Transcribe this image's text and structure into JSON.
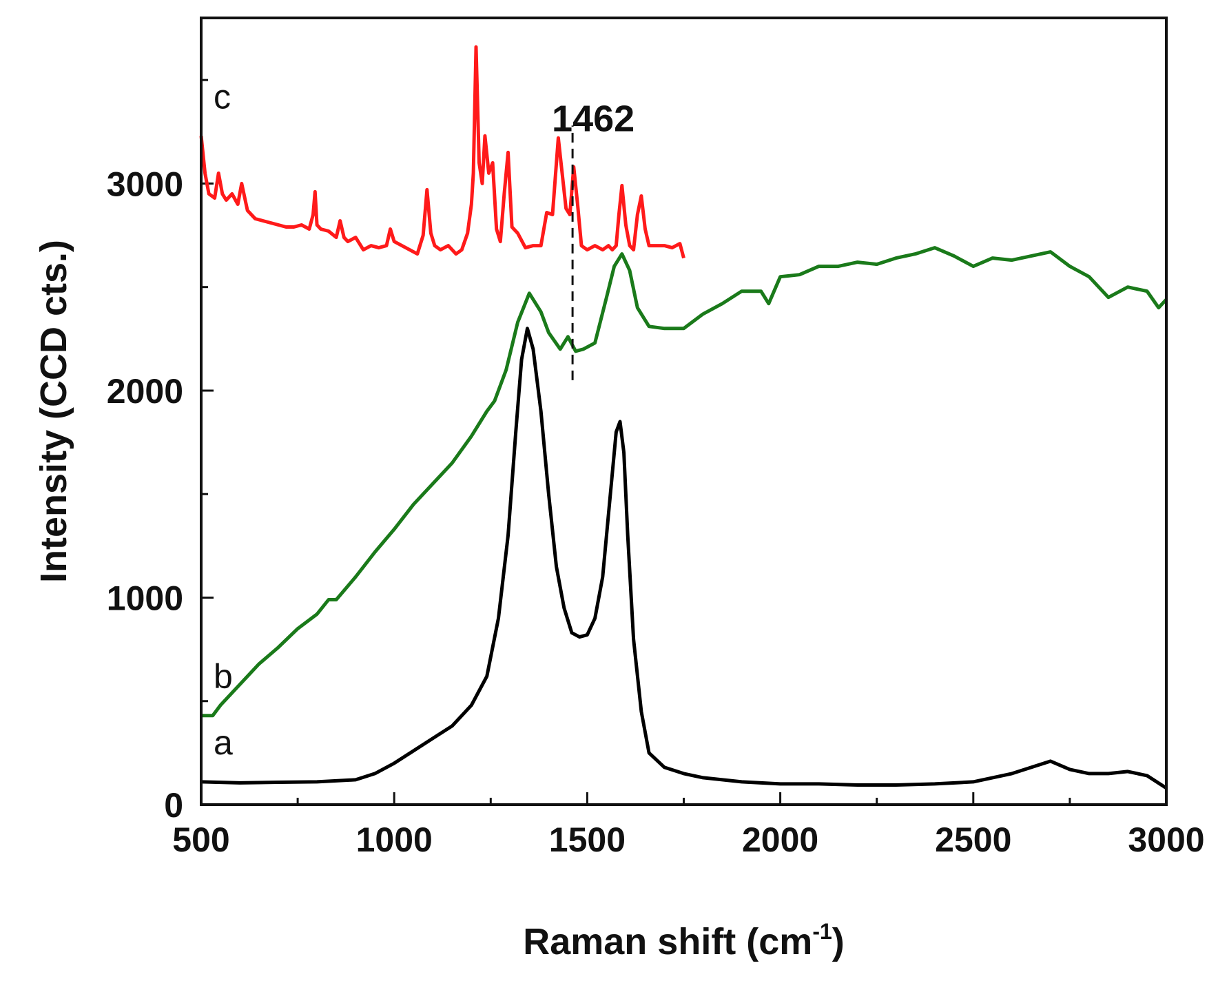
{
  "chart_data": {
    "type": "line",
    "title": "",
    "xlabel": "Raman shift (cm",
    "xlabel_sup": "-1",
    "xlabel_close": ")",
    "ylabel": "Intensity (CCD cts.)",
    "xlim": [
      500,
      3000
    ],
    "ylim": [
      0,
      3800
    ],
    "xticks": [
      500,
      1000,
      1500,
      2000,
      2500,
      3000
    ],
    "yticks": [
      0,
      1000,
      2000,
      3000
    ],
    "minor_xtick_step": 250,
    "minor_ytick_step": 500,
    "annotation": {
      "text": "1462",
      "x": 1462,
      "y_from": 2050,
      "y_to": 3280
    },
    "series": [
      {
        "name": "a",
        "color": "#000000",
        "x": [
          500,
          600,
          700,
          800,
          900,
          950,
          1000,
          1050,
          1100,
          1150,
          1200,
          1240,
          1270,
          1295,
          1315,
          1330,
          1345,
          1360,
          1380,
          1400,
          1420,
          1440,
          1460,
          1480,
          1500,
          1520,
          1540,
          1560,
          1575,
          1585,
          1595,
          1605,
          1620,
          1640,
          1660,
          1700,
          1750,
          1800,
          1900,
          2000,
          2100,
          2200,
          2300,
          2400,
          2500,
          2600,
          2650,
          2700,
          2750,
          2800,
          2850,
          2900,
          2950,
          3000
        ],
        "y": [
          110,
          105,
          108,
          110,
          120,
          150,
          200,
          260,
          320,
          380,
          480,
          620,
          900,
          1300,
          1800,
          2150,
          2300,
          2200,
          1900,
          1500,
          1150,
          950,
          830,
          810,
          820,
          900,
          1100,
          1500,
          1800,
          1850,
          1700,
          1300,
          800,
          450,
          250,
          180,
          150,
          130,
          110,
          100,
          100,
          95,
          95,
          100,
          110,
          150,
          180,
          210,
          170,
          150,
          150,
          160,
          140,
          80
        ]
      },
      {
        "name": "b",
        "color": "#1a7a1a",
        "x": [
          500,
          530,
          550,
          600,
          650,
          700,
          750,
          800,
          830,
          850,
          900,
          950,
          1000,
          1050,
          1100,
          1150,
          1200,
          1240,
          1260,
          1290,
          1320,
          1350,
          1380,
          1400,
          1430,
          1450,
          1470,
          1490,
          1520,
          1550,
          1570,
          1590,
          1610,
          1630,
          1660,
          1700,
          1750,
          1800,
          1850,
          1900,
          1950,
          1970,
          2000,
          2050,
          2100,
          2150,
          2200,
          2250,
          2300,
          2350,
          2400,
          2450,
          2500,
          2550,
          2600,
          2650,
          2700,
          2750,
          2800,
          2850,
          2900,
          2950,
          2980,
          3000
        ],
        "y": [
          430,
          430,
          480,
          580,
          680,
          760,
          850,
          920,
          990,
          990,
          1100,
          1220,
          1330,
          1450,
          1550,
          1650,
          1780,
          1900,
          1950,
          2100,
          2330,
          2470,
          2380,
          2280,
          2200,
          2260,
          2190,
          2200,
          2230,
          2450,
          2600,
          2660,
          2580,
          2400,
          2310,
          2300,
          2300,
          2370,
          2420,
          2480,
          2480,
          2420,
          2550,
          2560,
          2600,
          2600,
          2620,
          2610,
          2640,
          2660,
          2690,
          2650,
          2600,
          2640,
          2630,
          2650,
          2670,
          2600,
          2550,
          2450,
          2500,
          2480,
          2400,
          2440
        ]
      },
      {
        "name": "c",
        "color": "#ff1a1a",
        "x": [
          500,
          510,
          520,
          535,
          545,
          555,
          565,
          580,
          595,
          605,
          620,
          640,
          660,
          680,
          700,
          720,
          740,
          760,
          780,
          790,
          795,
          800,
          810,
          830,
          850,
          860,
          870,
          880,
          900,
          920,
          940,
          960,
          980,
          990,
          1000,
          1020,
          1040,
          1060,
          1075,
          1085,
          1095,
          1105,
          1120,
          1140,
          1160,
          1175,
          1190,
          1200,
          1205,
          1212,
          1220,
          1228,
          1235,
          1245,
          1255,
          1265,
          1275,
          1285,
          1295,
          1305,
          1320,
          1340,
          1360,
          1380,
          1395,
          1410,
          1425,
          1435,
          1445,
          1455,
          1465,
          1475,
          1485,
          1500,
          1520,
          1540,
          1555,
          1565,
          1575,
          1582,
          1590,
          1600,
          1610,
          1620,
          1630,
          1640,
          1650,
          1660,
          1680,
          1700,
          1720,
          1740,
          1750
        ],
        "y": [
          3230,
          3050,
          2950,
          2930,
          3050,
          2950,
          2920,
          2950,
          2900,
          3000,
          2870,
          2830,
          2820,
          2810,
          2800,
          2790,
          2790,
          2800,
          2780,
          2850,
          2960,
          2800,
          2780,
          2770,
          2740,
          2820,
          2740,
          2720,
          2740,
          2680,
          2700,
          2690,
          2700,
          2780,
          2720,
          2700,
          2680,
          2660,
          2750,
          2970,
          2760,
          2700,
          2680,
          2700,
          2660,
          2680,
          2760,
          2900,
          3050,
          3660,
          3100,
          3000,
          3230,
          3050,
          3100,
          2780,
          2720,
          2950,
          3150,
          2790,
          2760,
          2690,
          2700,
          2700,
          2860,
          2850,
          3220,
          3050,
          2880,
          2850,
          3080,
          2900,
          2700,
          2680,
          2700,
          2680,
          2700,
          2680,
          2700,
          2850,
          2990,
          2800,
          2700,
          2680,
          2850,
          2940,
          2780,
          2700,
          2700,
          2700,
          2690,
          2710,
          2640
        ]
      }
    ]
  }
}
